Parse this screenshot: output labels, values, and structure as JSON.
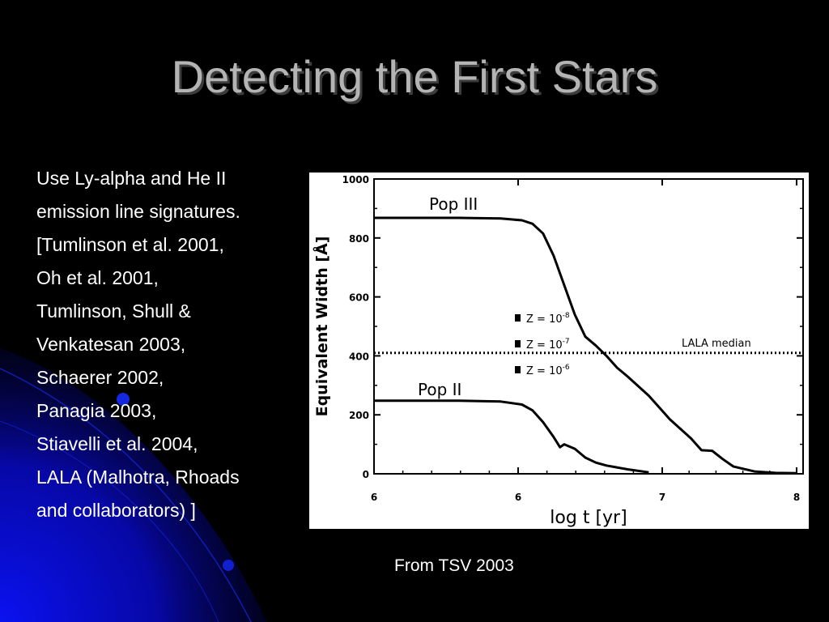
{
  "slide": {
    "title": "Detecting the First Stars",
    "body_lines": [
      "Use Ly-alpha and He II",
      "emission line signatures.",
      "[Tumlinson et al. 2001,",
      "Oh et al. 2001,",
      "Tumlinson, Shull &",
      "Venkatesan 2003,",
      "Schaerer 2002,",
      "Panagia 2003,",
      "Stiavelli et al. 2004,",
      "LALA (Malhotra, Rhoads",
      "and collaborators) ]"
    ],
    "caption": "From TSV 2003",
    "colors": {
      "background": "#000000",
      "title": "#b4b4b4",
      "text": "#ffffff",
      "accent_glow": "#0000cc"
    }
  },
  "chart_data": {
    "type": "line",
    "xlabel": "log t [yr]",
    "ylabel": "Equivalent Width [Å]",
    "xlim": [
      6,
      8
    ],
    "ylim": [
      0,
      1000
    ],
    "x_ticks": [
      "6",
      "6",
      "7",
      "8"
    ],
    "y_ticks": [
      "0",
      "200",
      "400",
      "600",
      "800",
      "1000"
    ],
    "grid": false,
    "series": [
      {
        "name": "Pop III",
        "points": [
          [
            6.0,
            868
          ],
          [
            6.2,
            868
          ],
          [
            6.4,
            868
          ],
          [
            6.6,
            866
          ],
          [
            6.7,
            860
          ],
          [
            6.75,
            848
          ],
          [
            6.8,
            815
          ],
          [
            6.85,
            740
          ],
          [
            6.9,
            640
          ],
          [
            6.95,
            540
          ],
          [
            7.0,
            465
          ],
          [
            7.05,
            435
          ],
          [
            7.1,
            400
          ],
          [
            7.15,
            360
          ],
          [
            7.2,
            330
          ],
          [
            7.3,
            265
          ],
          [
            7.4,
            185
          ],
          [
            7.5,
            120
          ],
          [
            7.55,
            80
          ],
          [
            7.6,
            78
          ],
          [
            7.65,
            50
          ],
          [
            7.7,
            25
          ],
          [
            7.8,
            8
          ],
          [
            7.9,
            3
          ],
          [
            8.0,
            2
          ]
        ]
      },
      {
        "name": "Pop II",
        "points": [
          [
            6.0,
            248
          ],
          [
            6.2,
            248
          ],
          [
            6.4,
            248
          ],
          [
            6.6,
            245
          ],
          [
            6.7,
            235
          ],
          [
            6.75,
            215
          ],
          [
            6.8,
            175
          ],
          [
            6.85,
            125
          ],
          [
            6.88,
            90
          ],
          [
            6.9,
            100
          ],
          [
            6.95,
            85
          ],
          [
            7.0,
            55
          ],
          [
            7.05,
            38
          ],
          [
            7.1,
            28
          ],
          [
            7.2,
            15
          ],
          [
            7.3,
            5
          ]
        ]
      }
    ],
    "reference_line": {
      "label": "LALA median",
      "y": 410,
      "style": "dotted"
    },
    "legend": {
      "placement": "center",
      "entries": [
        {
          "base": "Z = 10",
          "exp": "-8"
        },
        {
          "base": "Z = 10",
          "exp": "-7"
        },
        {
          "base": "Z = 10",
          "exp": "-6"
        }
      ]
    }
  }
}
